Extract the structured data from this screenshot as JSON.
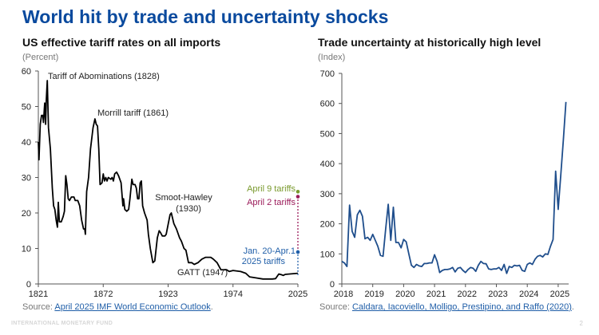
{
  "slide": {
    "title": "World hit by trade and uncertainty shocks",
    "footer": "INTERNATIONAL MONETARY FUND",
    "page_number": "2"
  },
  "colors": {
    "title": "#0a4a9e",
    "tariff_line": "#000000",
    "uncertainty_line": "#1f4e8c",
    "april9": "#7a9a2e",
    "april2": "#9b1b5a",
    "jan": "#1f5ea8"
  },
  "chart_data": [
    {
      "type": "line",
      "title": "US effective tariff rates on all imports",
      "ylabel": "(Percent)",
      "xlim": [
        1821,
        2025
      ],
      "ylim": [
        0,
        60
      ],
      "x_ticks": [
        "1821",
        "1872",
        "1923",
        "1974",
        "2025"
      ],
      "y_ticks": [
        "0",
        "10",
        "20",
        "30",
        "40",
        "50",
        "60"
      ],
      "grid": false,
      "series": [
        {
          "points": [
            [
              1821,
              40
            ],
            [
              1821.5,
              35
            ],
            [
              1822.5,
              45
            ],
            [
              1823.5,
              47.5
            ],
            [
              1824.5,
              47.5
            ],
            [
              1825,
              45.5
            ],
            [
              1826,
              51
            ],
            [
              1826.7,
              45
            ],
            [
              1827.3,
              52
            ],
            [
              1828,
              57.3
            ],
            [
              1829,
              44
            ],
            [
              1830.5,
              38
            ],
            [
              1832,
              27
            ],
            [
              1833,
              22
            ],
            [
              1834,
              21
            ],
            [
              1835,
              18
            ],
            [
              1836,
              16
            ],
            [
              1836.7,
              23
            ],
            [
              1837.5,
              17.5
            ],
            [
              1839,
              17.5
            ],
            [
              1840.5,
              19
            ],
            [
              1841.5,
              20.5
            ],
            [
              1842.5,
              30.5
            ],
            [
              1843.5,
              28
            ],
            [
              1844.5,
              24
            ],
            [
              1845.5,
              23.5
            ],
            [
              1847,
              24.5
            ],
            [
              1849,
              24.5
            ],
            [
              1850,
              23.5
            ],
            [
              1852,
              23.5
            ],
            [
              1853.5,
              22
            ],
            [
              1855,
              18
            ],
            [
              1856.5,
              15.5
            ],
            [
              1857.5,
              15.5
            ],
            [
              1858,
              14
            ],
            [
              1859,
              26
            ],
            [
              1860.5,
              30
            ],
            [
              1862,
              38
            ],
            [
              1864,
              44
            ],
            [
              1865.5,
              46.5
            ],
            [
              1866.5,
              45
            ],
            [
              1867.5,
              44.5
            ],
            [
              1868.5,
              38
            ],
            [
              1869.5,
              28
            ],
            [
              1871,
              28.5
            ],
            [
              1872,
              31
            ],
            [
              1873,
              29
            ],
            [
              1874,
              30
            ],
            [
              1875,
              29
            ],
            [
              1876,
              30
            ],
            [
              1878,
              29.5
            ],
            [
              1879,
              30
            ],
            [
              1880,
              29
            ],
            [
              1881,
              31
            ],
            [
              1882.5,
              31.5
            ],
            [
              1884,
              30.5
            ],
            [
              1885,
              29.5
            ],
            [
              1886,
              28.5
            ],
            [
              1887.5,
              22
            ],
            [
              1888,
              24
            ],
            [
              1889,
              21
            ],
            [
              1890.5,
              20.5
            ],
            [
              1892,
              21
            ],
            [
              1893,
              24
            ],
            [
              1894.5,
              29.5
            ],
            [
              1895.5,
              28
            ],
            [
              1897,
              28
            ],
            [
              1898,
              27
            ],
            [
              1899,
              24
            ],
            [
              1900,
              24
            ],
            [
              1901,
              28.5
            ],
            [
              1902,
              29
            ],
            [
              1903,
              22
            ],
            [
              1904.5,
              20
            ],
            [
              1906.5,
              18
            ],
            [
              1907.5,
              14
            ],
            [
              1909,
              10
            ],
            [
              1911,
              6
            ],
            [
              1912.5,
              6.5
            ],
            [
              1914.5,
              13
            ],
            [
              1916,
              15
            ],
            [
              1917,
              14.5
            ],
            [
              1918.5,
              13.5
            ],
            [
              1920.5,
              13.5
            ],
            [
              1921.5,
              14
            ],
            [
              1924.5,
              19.5
            ],
            [
              1925.5,
              20
            ],
            [
              1927.5,
              17
            ],
            [
              1929.5,
              15.5
            ],
            [
              1932,
              13
            ],
            [
              1933.5,
              12
            ],
            [
              1935.5,
              10
            ],
            [
              1937,
              9.5
            ],
            [
              1939,
              6
            ],
            [
              1941.5,
              6
            ],
            [
              1943.5,
              5.5
            ],
            [
              1946.5,
              6
            ],
            [
              1949.5,
              7
            ],
            [
              1952.5,
              7.5
            ],
            [
              1956.5,
              7.5
            ],
            [
              1958.5,
              7
            ],
            [
              1961.5,
              6
            ],
            [
              1964.5,
              4
            ],
            [
              1969,
              4
            ],
            [
              1971,
              3.5
            ],
            [
              1974,
              3.8
            ],
            [
              1980,
              3.5
            ],
            [
              1984,
              3
            ],
            [
              1987,
              2
            ],
            [
              1992,
              1.7
            ],
            [
              1997.5,
              1.4
            ],
            [
              2005,
              1.4
            ],
            [
              2007.5,
              1.5
            ],
            [
              2010,
              2.8
            ],
            [
              2012,
              2.6
            ],
            [
              2013.5,
              2.4
            ],
            [
              2015,
              2.7
            ],
            [
              2025,
              3
            ]
          ]
        }
      ],
      "annotations": [
        {
          "text": "Tariff of Abominations (1828)"
        },
        {
          "text": "Morrill tariff (1861)"
        },
        {
          "text": "Smoot-Hawley",
          "text2": "(1930)"
        },
        {
          "text": "GATT (1947)"
        },
        {
          "text": "April 9 tariffs",
          "year": 2025,
          "value": 26
        },
        {
          "text": "April 2 tariffs",
          "year": 2025,
          "value": 24.6
        },
        {
          "text": "Jan. 20-Apr.1",
          "text2": "2025 tariffs",
          "year": 2025,
          "value": 9
        }
      ],
      "source_prefix": "Source: ",
      "source_link": "April 2025 IMF World Economic Outlook",
      "source_suffix": "."
    },
    {
      "type": "line",
      "title": "Trade uncertainty at historically high level",
      "ylabel": "(Index)",
      "xlim": [
        "2018-01",
        "2025-04"
      ],
      "ylim": [
        0,
        700
      ],
      "x_ticks": [
        "2018",
        "2019",
        "2020",
        "2021",
        "2022",
        "2023",
        "2024",
        "2025"
      ],
      "y_ticks": [
        "0",
        "100",
        "200",
        "300",
        "400",
        "500",
        "600",
        "700"
      ],
      "grid": false,
      "series": [
        {
          "start": "2018-01",
          "frequency": "monthly",
          "values": [
            75,
            70,
            58,
            262,
            175,
            155,
            230,
            245,
            225,
            150,
            155,
            145,
            165,
            145,
            125,
            95,
            92,
            180,
            265,
            145,
            255,
            138,
            138,
            120,
            148,
            140,
            100,
            62,
            55,
            65,
            60,
            58,
            68,
            68,
            70,
            70,
            97,
            75,
            38,
            45,
            48,
            48,
            50,
            55,
            40,
            52,
            55,
            45,
            38,
            48,
            55,
            52,
            42,
            62,
            75,
            68,
            67,
            50,
            48,
            50,
            50,
            55,
            45,
            65,
            35,
            58,
            55,
            62,
            60,
            62,
            45,
            42,
            65,
            70,
            65,
            82,
            92,
            95,
            90,
            100,
            98,
            125,
            148,
            375,
            248,
            360,
            480,
            605
          ]
        }
      ],
      "source_prefix": "Source: ",
      "source_link": "Caldara, Iacoviello, Molligo, Prestipino, and Raffo (2020)",
      "source_suffix": "."
    }
  ]
}
